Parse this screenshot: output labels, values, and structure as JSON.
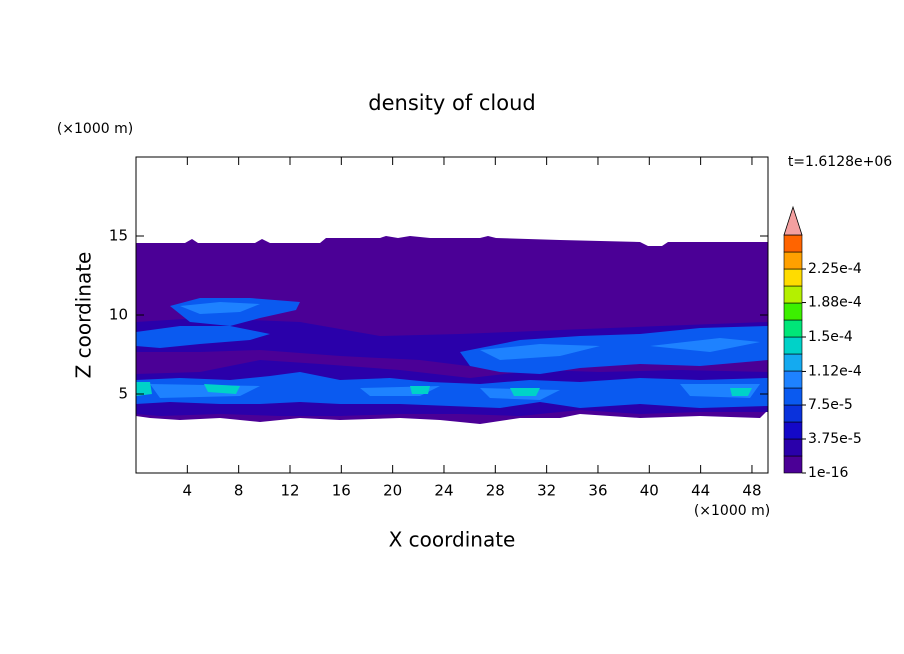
{
  "chart_data": {
    "type": "contour",
    "title": "density of cloud",
    "x_label": "X coordinate",
    "y_label": "Z coordinate",
    "x_unit": "(×1000 m)",
    "y_unit": "(×1000 m)",
    "time_label": "t=1.6128e+06",
    "xlim": [
      0,
      49.25
    ],
    "ylim": [
      0,
      20
    ],
    "xticks": [
      4,
      8,
      12,
      16,
      20,
      24,
      28,
      32,
      36,
      40,
      44,
      48
    ],
    "yticks": [
      5,
      10,
      15
    ],
    "colorbar": {
      "clim": [
        1e-16,
        0.0002625
      ],
      "colors": [
        "#4b0096",
        "#2a00aa",
        "#1408c8",
        "#0a32dc",
        "#0a5af0",
        "#1e82ff",
        "#14aaf0",
        "#00d2c8",
        "#00e678",
        "#3cf000",
        "#b4f000",
        "#ffdc00",
        "#ffa000",
        "#ff6400"
      ],
      "over_color": "#f4a0a0",
      "ticks": [
        {
          "value": 1e-16,
          "label": "1e-16"
        },
        {
          "value": 3.75e-05,
          "label": "3.75e-5"
        },
        {
          "value": 7.5e-05,
          "label": "7.5e-5"
        },
        {
          "value": 0.000112,
          "label": "1.12e-4"
        },
        {
          "value": 0.00015,
          "label": "1.5e-4"
        },
        {
          "value": 0.000188,
          "label": "1.88e-4"
        },
        {
          "value": 0.000225,
          "label": "2.25e-4"
        }
      ]
    }
  }
}
